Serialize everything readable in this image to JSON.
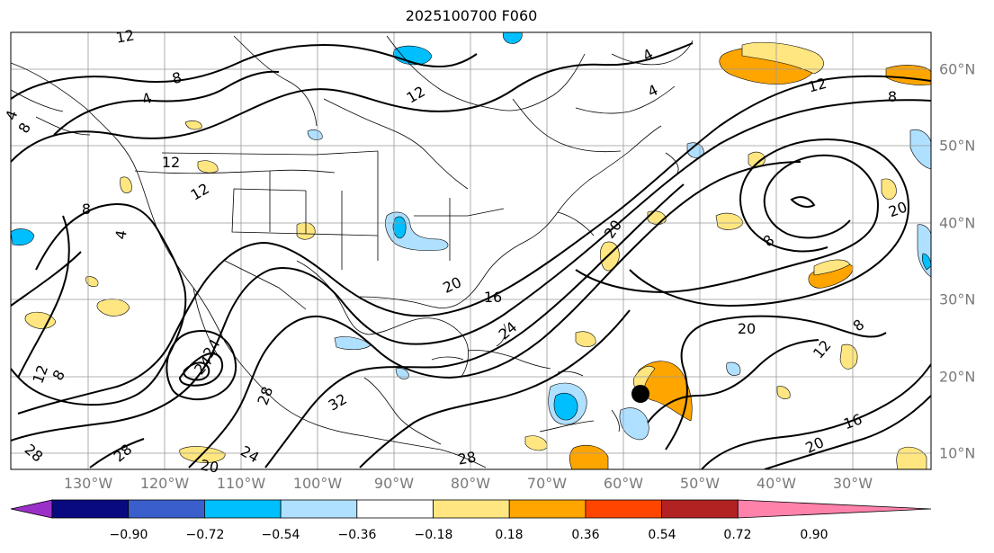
{
  "title": "2025100700 F060",
  "lon_labels": [
    "130°W",
    "120°W",
    "110°W",
    "100°W",
    "90°W",
    "80°W",
    "70°W",
    "60°W",
    "50°W",
    "40°W",
    "30°W"
  ],
  "lat_labels": [
    "60°N",
    "50°N",
    "40°N",
    "30°N",
    "20°N",
    "10°N"
  ],
  "colorbar": {
    "labels": [
      "−0.90",
      "−0.72",
      "−0.54",
      "−0.36",
      "−0.18",
      "0.18",
      "0.36",
      "0.54",
      "0.72",
      "0.90"
    ],
    "colors": [
      "#9b30c8",
      "#0a0a80",
      "#3a5fcd",
      "#00bfff",
      "#b0e0ff",
      "#ffffff",
      "#ffe680",
      "#ffa500",
      "#ff4500",
      "#b22222",
      "#ff82ab"
    ]
  },
  "contour_labels": [
    {
      "text": "12"
    },
    {
      "text": "8"
    },
    {
      "text": "4"
    },
    {
      "text": "8"
    },
    {
      "text": "4"
    },
    {
      "text": "12"
    },
    {
      "text": "12"
    },
    {
      "text": "8"
    },
    {
      "text": "4"
    },
    {
      "text": "12"
    },
    {
      "text": "4"
    },
    {
      "text": "4"
    },
    {
      "text": "12"
    },
    {
      "text": "8"
    },
    {
      "text": "20"
    },
    {
      "text": "8"
    },
    {
      "text": "20"
    },
    {
      "text": "20"
    },
    {
      "text": "16"
    },
    {
      "text": "24"
    },
    {
      "text": "20"
    },
    {
      "text": "12"
    },
    {
      "text": "8"
    },
    {
      "text": "16"
    },
    {
      "text": "20"
    },
    {
      "text": "12"
    },
    {
      "text": "8"
    },
    {
      "text": "24"
    },
    {
      "text": "28"
    },
    {
      "text": "32"
    },
    {
      "text": "28"
    },
    {
      "text": "24"
    },
    {
      "text": "28"
    },
    {
      "text": "24"
    },
    {
      "text": "20"
    },
    {
      "text": "28"
    }
  ]
}
